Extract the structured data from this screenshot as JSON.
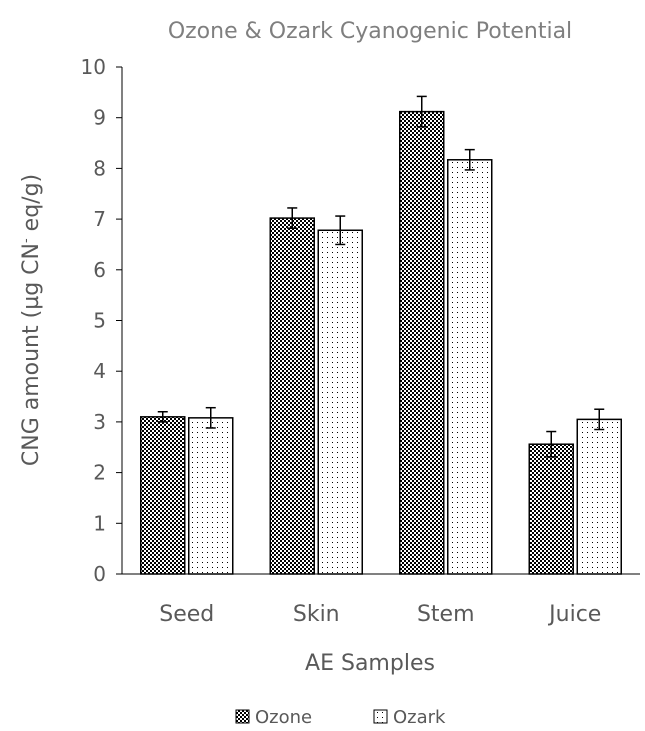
{
  "chart_data": {
    "type": "bar",
    "title": "Ozone & Ozark Cyanogenic Potential",
    "xlabel": "AE Samples",
    "ylabel_main": "CNG amount (µg CN",
    "ylabel_sup": "-",
    "ylabel_tail": " eq/g)",
    "categories": [
      "Seed",
      "Skin",
      "Stem",
      "Juice"
    ],
    "ylim": [
      0,
      10
    ],
    "yticks": [
      0,
      1,
      2,
      3,
      4,
      5,
      6,
      7,
      8,
      9,
      10
    ],
    "grid": false,
    "legend_position": "bottom",
    "series": [
      {
        "name": "Ozone",
        "pattern": "crosshatch",
        "values": [
          3.1,
          7.02,
          9.12,
          2.56
        ],
        "errors": [
          0.1,
          0.2,
          0.3,
          0.25
        ]
      },
      {
        "name": "Ozark",
        "pattern": "dots",
        "values": [
          3.08,
          6.78,
          8.17,
          3.05
        ],
        "errors": [
          0.2,
          0.28,
          0.2,
          0.2
        ]
      }
    ]
  }
}
